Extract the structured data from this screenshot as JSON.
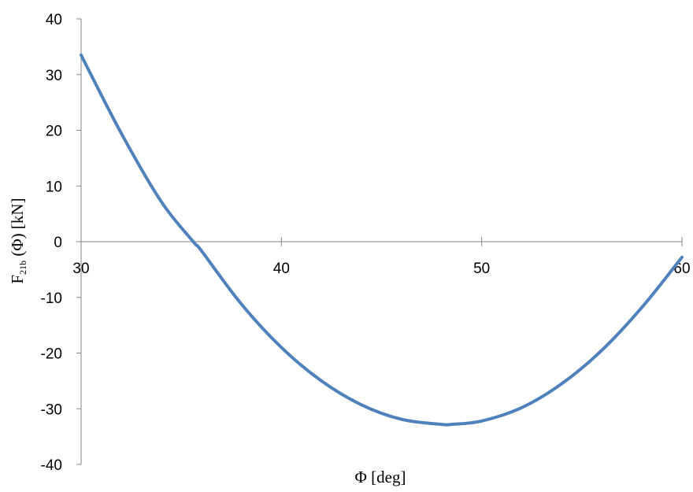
{
  "chart_data": {
    "type": "line",
    "title": "",
    "xlabel": "Φ [deg]",
    "ylabel": {
      "main": "F",
      "sub": "21b",
      "rest": " (Φ) [kN]"
    },
    "xlim": [
      30,
      60
    ],
    "ylim": [
      -40,
      40
    ],
    "x_ticks": [
      30,
      40,
      50,
      60
    ],
    "y_ticks": [
      -40,
      -30,
      -20,
      -10,
      0,
      10,
      20,
      30,
      40
    ],
    "x_tick_labels": [
      "30",
      "40",
      "50",
      "60"
    ],
    "y_tick_labels": [
      "-40",
      "-30",
      "-20",
      "-10",
      "0",
      "10",
      "20",
      "30",
      "40"
    ],
    "grid": false,
    "legend": "none",
    "line_color": "#4f81bd",
    "series": [
      {
        "x": [
          30,
          32,
          34,
          35.6,
          36,
          38,
          40,
          42,
          44,
          46,
          48,
          48.5,
          50,
          52,
          54,
          56,
          58,
          60
        ],
        "y": [
          33.5,
          19.5,
          7.2,
          0,
          -1.6,
          -11.2,
          -19.0,
          -25.0,
          -29.3,
          -31.9,
          -32.8,
          -32.8,
          -32.2,
          -29.8,
          -25.5,
          -19.5,
          -11.8,
          -2.8
        ]
      }
    ]
  }
}
